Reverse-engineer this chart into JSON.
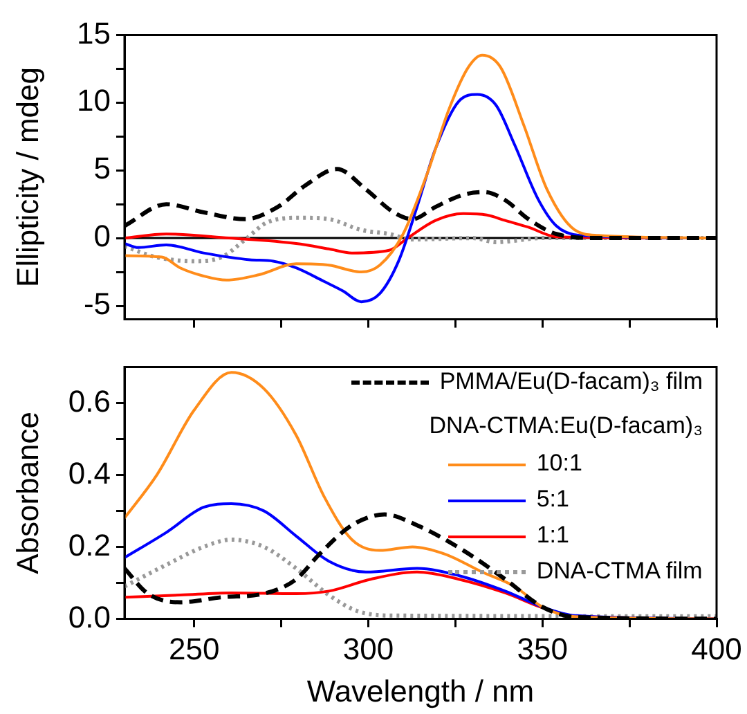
{
  "chart_data": [
    {
      "type": "line",
      "ylabel": "Ellipticity / mdeg",
      "xlim": [
        230,
        400
      ],
      "xticks": [
        250,
        {
          "value": 275,
          "label": null
        },
        300,
        {
          "value": 325,
          "label": null
        },
        350,
        {
          "value": 375,
          "label": null
        },
        400
      ],
      "ylim": [
        -6,
        15
      ],
      "yticks": [
        {
          "value": -5,
          "label": "-5"
        },
        {
          "value": -2.5,
          "label": null
        },
        0,
        {
          "value": 2.5,
          "label": null
        },
        5,
        {
          "value": 7.5,
          "label": null
        },
        10,
        {
          "value": 12.5,
          "label": null
        },
        15
      ],
      "tick_labels": "y",
      "grid": false,
      "legend": false,
      "marker": "none",
      "ref_lines": [
        {
          "axis": "y",
          "value": 0,
          "color": "#000000",
          "line_style": "solid"
        }
      ],
      "series": [
        {
          "color": "#000000",
          "line_style": "dashed",
          "x": [
            230,
            242,
            252.7,
            264.7,
            274,
            282,
            291,
            299.3,
            307.3,
            312.7,
            319.3,
            327.3,
            333.3,
            339.3,
            346,
            354,
            366,
            400
          ],
          "values": [
            0.9,
            2.5,
            1.9,
            1.4,
            2.3,
            3.9,
            5.1,
            3.6,
            1.9,
            1.4,
            2.3,
            3.2,
            3.4,
            2.8,
            1.4,
            0.3,
            0,
            0
          ]
        },
        {
          "color": "#ff8c1a",
          "line_style": "solid",
          "x": [
            230,
            240.7,
            246,
            252.7,
            259.3,
            268.7,
            279.3,
            288.7,
            298,
            303.3,
            310,
            316.7,
            323.3,
            328.7,
            332.7,
            338,
            344.7,
            351.3,
            359.3,
            366,
            400
          ],
          "values": [
            -1.3,
            -1.4,
            -2.2,
            -2.8,
            -3.1,
            -2.7,
            -1.9,
            -2,
            -2.5,
            -2,
            0.3,
            4.6,
            9.6,
            12.6,
            13.5,
            12.6,
            8.3,
            3.6,
            0.6,
            0.2,
            0
          ]
        },
        {
          "color": "#0000ff",
          "line_style": "solid",
          "x": [
            230,
            234,
            242,
            252.7,
            266,
            272.7,
            279.3,
            287.3,
            292.7,
            298,
            303.3,
            308.7,
            314,
            319.3,
            326,
            331.3,
            336.7,
            342,
            348.7,
            354,
            360.7,
            400
          ],
          "values": [
            -0.4,
            -0.7,
            -0.5,
            -1.1,
            -1.6,
            -1.7,
            -2.2,
            -3.2,
            -3.9,
            -4.7,
            -4.1,
            -1.7,
            2.3,
            6.6,
            10.1,
            10.6,
            9.8,
            6.9,
            2.9,
            0.9,
            0.2,
            0
          ]
        },
        {
          "color": "#ff0000",
          "line_style": "solid",
          "x": [
            230,
            242,
            260,
            279.3,
            288.7,
            295.3,
            306,
            311.3,
            319.3,
            327.3,
            334,
            339.3,
            346,
            354,
            400
          ],
          "values": [
            0,
            0.3,
            0,
            -0.4,
            -0.8,
            -1.1,
            -0.9,
            0,
            1.3,
            1.8,
            1.7,
            1.3,
            0.8,
            0.1,
            0
          ]
        },
        {
          "color": "#999999",
          "line_style": "dotted",
          "x": [
            230,
            239,
            250,
            258,
            264.7,
            271.3,
            280.7,
            288.7,
            298,
            306,
            312.7,
            330,
            336.7,
            350,
            400
          ],
          "values": [
            -0.6,
            -1.4,
            -1.7,
            -1.4,
            -0.1,
            1.2,
            1.5,
            1.4,
            0.6,
            0.3,
            -0.1,
            0,
            -0.3,
            0,
            0
          ]
        }
      ]
    },
    {
      "type": "line",
      "xlabel": "Wavelength / nm",
      "ylabel": "Absorbance",
      "xlim": [
        230,
        400
      ],
      "xticks": [
        250,
        {
          "value": 275,
          "label": null
        },
        300,
        {
          "value": 325,
          "label": null
        },
        350,
        {
          "value": 375,
          "label": null
        },
        400
      ],
      "ylim": [
        0,
        0.7
      ],
      "yticks": [
        {
          "value": 0,
          "label": "0.0"
        },
        {
          "value": 0.1,
          "label": null
        },
        {
          "value": 0.2,
          "label": "0.2"
        },
        {
          "value": 0.3,
          "label": null
        },
        {
          "value": 0.4,
          "label": "0.4"
        },
        {
          "value": 0.5,
          "label": null
        },
        {
          "value": 0.6,
          "label": "0.6"
        }
      ],
      "grid": false,
      "legend": "top right",
      "legend_title": "DNA-CTMA:Eu(D-facam)₃",
      "marker": "none",
      "series": [
        {
          "name": "PMMA/Eu(D-facam)₃ film",
          "color": "#000000",
          "line_style": "dashed",
          "x": [
            230,
            236.7,
            246,
            258,
            270,
            279.3,
            286,
            295.3,
            304.7,
            314,
            327.3,
            339.3,
            350,
            359.3,
            400
          ],
          "values": [
            0.14,
            0.07,
            0.046,
            0.06,
            0.07,
            0.11,
            0.18,
            0.26,
            0.29,
            0.26,
            0.19,
            0.11,
            0.033,
            0.005,
            0
          ]
        },
        {
          "name": "10:1",
          "color": "#ff8c1a",
          "line_style": "solid",
          "x": [
            230,
            239.3,
            250,
            260.7,
            270,
            279.3,
            287.3,
            295.3,
            303.3,
            312.7,
            322,
            332.7,
            342,
            350,
            359.3,
            400
          ],
          "values": [
            0.28,
            0.4,
            0.58,
            0.685,
            0.64,
            0.51,
            0.34,
            0.22,
            0.19,
            0.2,
            0.18,
            0.13,
            0.09,
            0.033,
            0.006,
            0
          ]
        },
        {
          "name": "5:1",
          "color": "#0000ff",
          "line_style": "solid",
          "x": [
            230,
            242,
            252.7,
            260.7,
            270,
            279.3,
            288.7,
            299.3,
            314,
            326,
            339.3,
            350,
            359.3,
            400
          ],
          "values": [
            0.17,
            0.24,
            0.31,
            0.32,
            0.3,
            0.23,
            0.16,
            0.13,
            0.14,
            0.12,
            0.077,
            0.033,
            0.009,
            0
          ]
        },
        {
          "name": "1:1",
          "color": "#ff0000",
          "line_style": "solid",
          "x": [
            230,
            246,
            260.7,
            279.3,
            288.7,
            300.7,
            314,
            326,
            339.3,
            350,
            359.3,
            400
          ],
          "values": [
            0.06,
            0.066,
            0.072,
            0.07,
            0.077,
            0.11,
            0.13,
            0.11,
            0.072,
            0.031,
            0.008,
            0
          ]
        },
        {
          "name": "DNA-CTMA film",
          "color": "#999999",
          "line_style": "dotted",
          "x": [
            230,
            242,
            252.7,
            260.7,
            270,
            279.3,
            288.7,
            296.7,
            306,
            400
          ],
          "values": [
            0.09,
            0.15,
            0.2,
            0.22,
            0.2,
            0.14,
            0.066,
            0.022,
            0.009,
            0.007
          ]
        }
      ]
    }
  ]
}
